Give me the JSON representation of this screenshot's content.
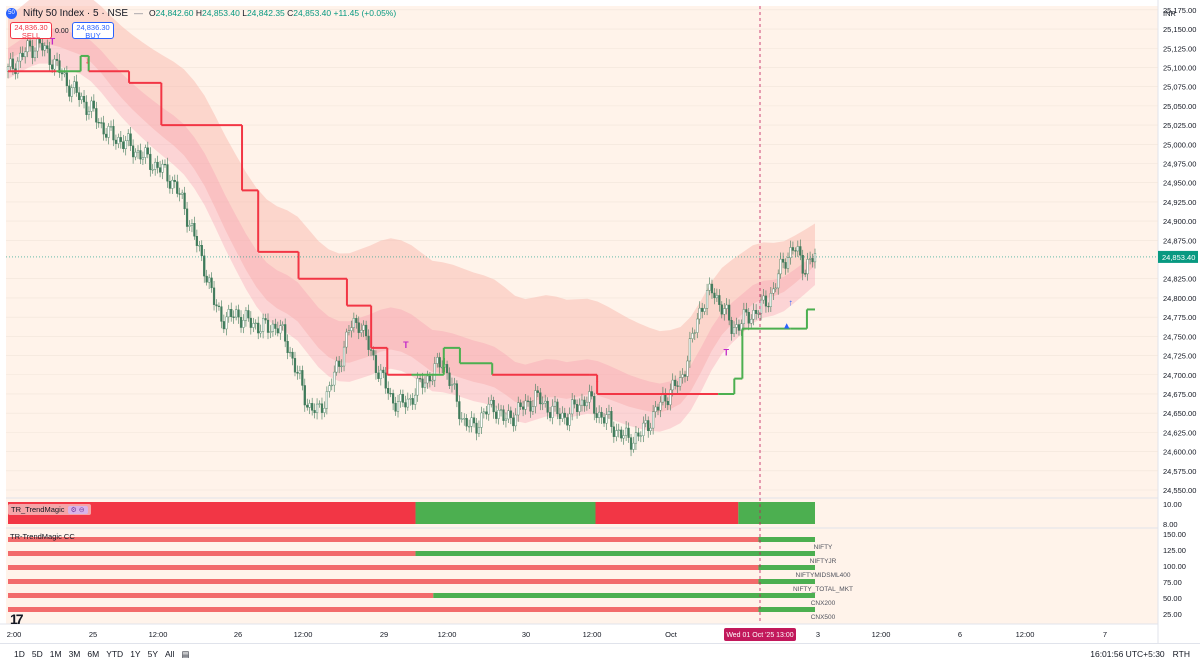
{
  "header": {
    "symbol_badge": "50",
    "symbol": "Nifty 50 Index · 5 · NSE",
    "dash": "—",
    "o_label": "O",
    "o_value": "24,842.60",
    "h_label": "H",
    "h_value": "24,853.40",
    "l_label": "L",
    "l_value": "24,842.35",
    "c_label": "C",
    "c_value": "24,853.40",
    "change": "+11.45 (+0.05%)"
  },
  "trade": {
    "sell_price": "24,836.30",
    "sell_label": "SELL",
    "spread": "0.00",
    "buy_price": "24,836.30",
    "buy_label": "BUY"
  },
  "currency": "INR",
  "indicators": {
    "trendmagic": "TR_TrendMagic",
    "trendmagic_cc": "TR-TrendMagic CC"
  },
  "bottom": {
    "ranges": [
      "1D",
      "5D",
      "1M",
      "3M",
      "6M",
      "YTD",
      "1Y",
      "5Y",
      "All"
    ],
    "time": "16:01:56 UTC+5:30",
    "session": "RTH"
  },
  "colors": {
    "bg": "#fff3ea",
    "up": "#4caf50",
    "down": "#f23645",
    "grid": "#f0e4da",
    "candle": "#3f7a5a"
  },
  "chart_data": {
    "type": "candlestick",
    "title": "Nifty 50 Index · 5 · NSE",
    "ylim": [
      24550,
      25180
    ],
    "y_ticks": [
      "25,175.00",
      "25,150.00",
      "25,125.00",
      "25,100.00",
      "25,075.00",
      "25,050.00",
      "25,025.00",
      "25,000.00",
      "24,975.00",
      "24,950.00",
      "24,925.00",
      "24,900.00",
      "24,875.00",
      "24,825.00",
      "24,800.00",
      "24,775.00",
      "24,750.00",
      "24,725.00",
      "24,700.00",
      "24,675.00",
      "24,650.00",
      "24,625.00",
      "24,600.00",
      "24,575.00",
      "24,550.00"
    ],
    "last_price": "24,853.40",
    "x_tick_labels": [
      "2:00",
      "25",
      "12:00",
      "26",
      "12:00",
      "29",
      "12:00",
      "30",
      "12:00",
      "Oct",
      "3",
      "12:00",
      "6",
      "12:00",
      "7"
    ],
    "crosshair_label": "Wed 01 Oct '25   13:00",
    "close_path": [
      25095,
      25110,
      25125,
      25130,
      25115,
      25095,
      25075,
      25060,
      25045,
      25025,
      25010,
      25005,
      24995,
      24985,
      24975,
      24965,
      24950,
      24920,
      24880,
      24840,
      24790,
      24770,
      24780,
      24770,
      24765,
      24760,
      24765,
      24740,
      24700,
      24660,
      24650,
      24680,
      24715,
      24760,
      24770,
      24730,
      24700,
      24670,
      24660,
      24670,
      24690,
      24700,
      24720,
      24680,
      24640,
      24630,
      24650,
      24660,
      24640,
      24650,
      24660,
      24670,
      24660,
      24650,
      24645,
      24660,
      24670,
      24650,
      24640,
      24625,
      24615,
      24620,
      24640,
      24660,
      24680,
      24690,
      24740,
      24790,
      24810,
      24790,
      24760,
      24770,
      24780,
      24790,
      24810,
      24850,
      24865,
      24840,
      24853
    ],
    "trend_line": [
      {
        "x": 0.0,
        "y": 25095,
        "dir": "down"
      },
      {
        "x": 0.06,
        "y": 25095,
        "dir": "up"
      },
      {
        "x": 0.09,
        "y": 25115,
        "dir": "up"
      },
      {
        "x": 0.1,
        "y": 25095,
        "dir": "down"
      },
      {
        "x": 0.15,
        "y": 25080,
        "dir": "down"
      },
      {
        "x": 0.19,
        "y": 25025,
        "dir": "down"
      },
      {
        "x": 0.29,
        "y": 24940,
        "dir": "down"
      },
      {
        "x": 0.31,
        "y": 24860,
        "dir": "down"
      },
      {
        "x": 0.36,
        "y": 24825,
        "dir": "down"
      },
      {
        "x": 0.42,
        "y": 24790,
        "dir": "down"
      },
      {
        "x": 0.45,
        "y": 24735,
        "dir": "down"
      },
      {
        "x": 0.47,
        "y": 24700,
        "dir": "down"
      },
      {
        "x": 0.5,
        "y": 24700,
        "dir": "up"
      },
      {
        "x": 0.54,
        "y": 24735,
        "dir": "up"
      },
      {
        "x": 0.56,
        "y": 24715,
        "dir": "up"
      },
      {
        "x": 0.6,
        "y": 24700,
        "dir": "down"
      },
      {
        "x": 0.72,
        "y": 24700,
        "dir": "down"
      },
      {
        "x": 0.73,
        "y": 24675,
        "dir": "down"
      },
      {
        "x": 0.88,
        "y": 24675,
        "dir": "up"
      },
      {
        "x": 0.9,
        "y": 24695,
        "dir": "up"
      },
      {
        "x": 0.91,
        "y": 24760,
        "dir": "up"
      },
      {
        "x": 0.97,
        "y": 24760,
        "dir": "up"
      },
      {
        "x": 0.99,
        "y": 24785,
        "dir": "up"
      },
      {
        "x": 1.0,
        "y": 24785,
        "dir": "up"
      }
    ],
    "trendmagic_panel": {
      "ylim": [
        8,
        10
      ],
      "y_ticks": [
        "10.00",
        "8.00"
      ],
      "segments": [
        {
          "from": 0.0,
          "to": 0.505,
          "dir": "down"
        },
        {
          "from": 0.505,
          "to": 0.728,
          "dir": "up"
        },
        {
          "from": 0.728,
          "to": 0.905,
          "dir": "down"
        },
        {
          "from": 0.905,
          "to": 1.0,
          "dir": "up"
        }
      ]
    },
    "cc_panel": {
      "y_ticks": [
        "150.00",
        "125.00",
        "100.00",
        "75.00",
        "50.00",
        "25.00"
      ],
      "rows": [
        {
          "name": "NIFTY",
          "switch": 0.93
        },
        {
          "name": "NIFTYJR",
          "switch": 0.505
        },
        {
          "name": "NIFTYMIDSML400",
          "switch": 0.93
        },
        {
          "name": "NIFTY_TOTAL_MKT",
          "switch": 0.93
        },
        {
          "name": "CNX200",
          "switch": 0.527
        },
        {
          "name": "CNX500",
          "switch": 0.93
        }
      ]
    },
    "signals": [
      {
        "x": 0.055,
        "y": 25130,
        "label": "T",
        "dir": "up"
      },
      {
        "x": 0.098,
        "y": 25105,
        "label": "↓",
        "dir": "down"
      },
      {
        "x": 0.493,
        "y": 24735,
        "label": "T",
        "dir": "up"
      },
      {
        "x": 0.73,
        "y": 24690,
        "label": "↓",
        "dir": "down"
      },
      {
        "x": 0.89,
        "y": 24725,
        "label": "T",
        "dir": "up"
      },
      {
        "x": 0.97,
        "y": 24790,
        "label": "↑",
        "dir": "up"
      },
      {
        "x": 0.965,
        "y": 24760,
        "label": "▲",
        "dir": "up"
      }
    ]
  }
}
